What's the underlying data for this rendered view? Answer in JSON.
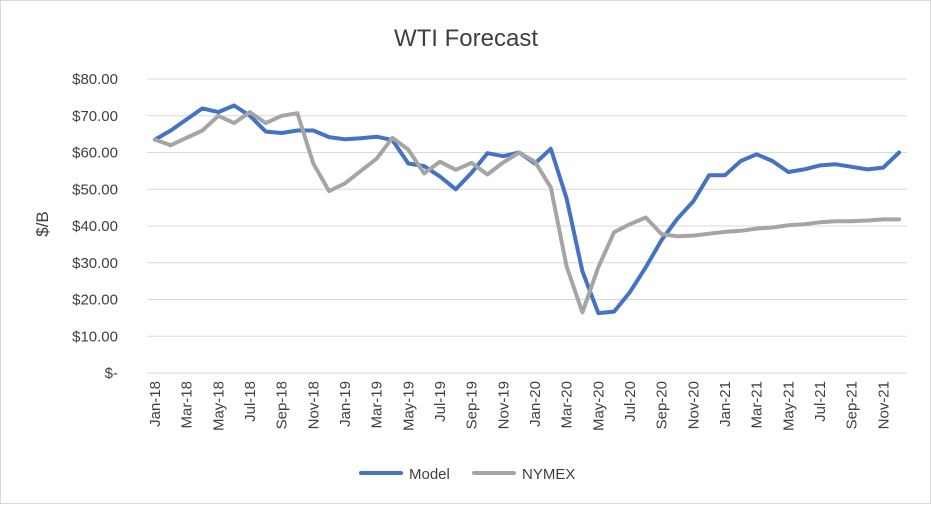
{
  "chart_data": {
    "type": "line",
    "title": "WTI Forecast",
    "xlabel": "",
    "ylabel": "$/B",
    "ylim": [
      0,
      80
    ],
    "y_ticks": [
      0,
      10,
      20,
      30,
      40,
      50,
      60,
      70,
      80
    ],
    "y_tick_labels": [
      "$-",
      "$10.00",
      "$20.00",
      "$30.00",
      "$40.00",
      "$50.00",
      "$60.00",
      "$70.00",
      "$80.00"
    ],
    "grid": "horizontal",
    "legend_position": "bottom",
    "categories": [
      "Jan-18",
      "Feb-18",
      "Mar-18",
      "Apr-18",
      "May-18",
      "Jun-18",
      "Jul-18",
      "Aug-18",
      "Sep-18",
      "Oct-18",
      "Nov-18",
      "Dec-18",
      "Jan-19",
      "Feb-19",
      "Mar-19",
      "Apr-19",
      "May-19",
      "Jun-19",
      "Jul-19",
      "Aug-19",
      "Sep-19",
      "Oct-19",
      "Nov-19",
      "Dec-19",
      "Jan-20",
      "Feb-20",
      "Mar-20",
      "Apr-20",
      "May-20",
      "Jun-20",
      "Jul-20",
      "Aug-20",
      "Sep-20",
      "Oct-20",
      "Nov-20",
      "Dec-20",
      "Jan-21",
      "Feb-21",
      "Mar-21",
      "Apr-21",
      "May-21",
      "Jun-21",
      "Jul-21",
      "Aug-21",
      "Sep-21",
      "Oct-21",
      "Nov-21",
      "Dec-21"
    ],
    "x_tick_labels": [
      "Jan-18",
      "Mar-18",
      "May-18",
      "Jul-18",
      "Sep-18",
      "Nov-18",
      "Jan-19",
      "Mar-19",
      "May-19",
      "Jul-19",
      "Sep-19",
      "Nov-19",
      "Jan-20",
      "Mar-20",
      "May-20",
      "Jul-20",
      "Sep-20",
      "Nov-20",
      "Jan-21",
      "Mar-21",
      "May-21",
      "Jul-21",
      "Sep-21",
      "Nov-21"
    ],
    "series": [
      {
        "name": "Model",
        "color": "#4472C4",
        "values": [
          63.5,
          66.0,
          69.0,
          72.0,
          71.0,
          72.8,
          70.0,
          65.7,
          65.3,
          66.0,
          66.0,
          64.2,
          63.6,
          63.9,
          64.3,
          63.4,
          57.0,
          56.3,
          53.5,
          50.0,
          54.5,
          59.8,
          59.0,
          60.0,
          57.0,
          61.0,
          47.5,
          27.7,
          16.3,
          16.7,
          22.0,
          28.8,
          36.2,
          42.0,
          46.7,
          53.8,
          53.8,
          57.7,
          59.5,
          57.7,
          54.7,
          55.4,
          56.5,
          56.8,
          56.1,
          55.4,
          55.9,
          60.0
        ]
      },
      {
        "name": "NYMEX",
        "color": "#A5A5A5",
        "values": [
          63.5,
          62.0,
          64.0,
          66.0,
          70.0,
          68.0,
          71.0,
          68.0,
          70.0,
          70.7,
          57.0,
          49.5,
          51.6,
          55.0,
          58.3,
          64.0,
          60.8,
          54.3,
          57.5,
          55.3,
          57.2,
          54.0,
          57.3,
          60.0,
          57.5,
          50.5,
          29.0,
          16.5,
          28.8,
          38.3,
          40.5,
          42.3,
          37.8,
          37.2,
          37.4,
          37.9,
          38.4,
          38.7,
          39.3,
          39.6,
          40.2,
          40.5,
          41.0,
          41.3,
          41.3,
          41.5,
          41.8,
          41.8
        ]
      }
    ]
  }
}
